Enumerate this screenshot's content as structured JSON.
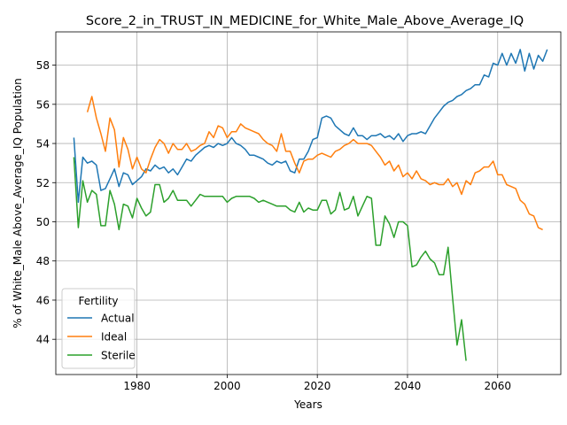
{
  "chart_data": {
    "type": "line",
    "title": "Score_2_in_TRUST_IN_MEDICINE_for_White_Male_Above_Average_IQ",
    "xlabel": "Years",
    "ylabel": "% of White_Male Above_Average_IQ Population",
    "xlim": [
      1962,
      2074
    ],
    "ylim": [
      42.2,
      59.7
    ],
    "xticks": [
      1980,
      2000,
      2020,
      2040,
      2060
    ],
    "yticks": [
      44,
      46,
      48,
      50,
      52,
      54,
      56,
      58
    ],
    "grid": true,
    "legend": {
      "title": "Fertility",
      "placement": "lower-left"
    },
    "series": [
      {
        "name": "Actual",
        "color": "#1f77b4",
        "points": [
          [
            1966,
            54.3
          ],
          [
            1967,
            51.0
          ],
          [
            1968,
            53.3
          ],
          [
            1969,
            53.0
          ],
          [
            1970,
            53.1
          ],
          [
            1971,
            52.9
          ],
          [
            1972,
            51.6
          ],
          [
            1973,
            51.7
          ],
          [
            1974,
            52.2
          ],
          [
            1975,
            52.7
          ],
          [
            1976,
            51.8
          ],
          [
            1977,
            52.5
          ],
          [
            1978,
            52.4
          ],
          [
            1979,
            51.9
          ],
          [
            1980,
            52.1
          ],
          [
            1981,
            52.3
          ],
          [
            1982,
            52.7
          ],
          [
            1983,
            52.6
          ],
          [
            1984,
            52.9
          ],
          [
            1985,
            52.7
          ],
          [
            1986,
            52.8
          ],
          [
            1987,
            52.5
          ],
          [
            1988,
            52.7
          ],
          [
            1989,
            52.4
          ],
          [
            1990,
            52.8
          ],
          [
            1991,
            53.2
          ],
          [
            1992,
            53.1
          ],
          [
            1993,
            53.4
          ],
          [
            1994,
            53.6
          ],
          [
            1995,
            53.8
          ],
          [
            1996,
            53.9
          ],
          [
            1997,
            53.8
          ],
          [
            1998,
            54.0
          ],
          [
            1999,
            53.9
          ],
          [
            2000,
            54.0
          ],
          [
            2001,
            54.3
          ],
          [
            2002,
            54.0
          ],
          [
            2003,
            53.9
          ],
          [
            2004,
            53.7
          ],
          [
            2005,
            53.4
          ],
          [
            2006,
            53.4
          ],
          [
            2007,
            53.3
          ],
          [
            2008,
            53.2
          ],
          [
            2009,
            53.0
          ],
          [
            2010,
            52.9
          ],
          [
            2011,
            53.1
          ],
          [
            2012,
            53.0
          ],
          [
            2013,
            53.1
          ],
          [
            2014,
            52.6
          ],
          [
            2015,
            52.5
          ],
          [
            2016,
            53.2
          ],
          [
            2017,
            53.2
          ],
          [
            2018,
            53.6
          ],
          [
            2019,
            54.2
          ],
          [
            2020,
            54.3
          ],
          [
            2021,
            55.3
          ],
          [
            2022,
            55.4
          ],
          [
            2023,
            55.3
          ],
          [
            2024,
            54.9
          ],
          [
            2025,
            54.7
          ],
          [
            2026,
            54.5
          ],
          [
            2027,
            54.4
          ],
          [
            2028,
            54.8
          ],
          [
            2029,
            54.4
          ],
          [
            2030,
            54.4
          ],
          [
            2031,
            54.2
          ],
          [
            2032,
            54.4
          ],
          [
            2033,
            54.4
          ],
          [
            2034,
            54.5
          ],
          [
            2035,
            54.3
          ],
          [
            2036,
            54.4
          ],
          [
            2037,
            54.2
          ],
          [
            2038,
            54.5
          ],
          [
            2039,
            54.1
          ],
          [
            2040,
            54.4
          ],
          [
            2041,
            54.5
          ],
          [
            2042,
            54.5
          ],
          [
            2043,
            54.6
          ],
          [
            2044,
            54.5
          ],
          [
            2045,
            54.9
          ],
          [
            2046,
            55.3
          ],
          [
            2047,
            55.6
          ],
          [
            2048,
            55.9
          ],
          [
            2049,
            56.1
          ],
          [
            2050,
            56.2
          ],
          [
            2051,
            56.4
          ],
          [
            2052,
            56.5
          ],
          [
            2053,
            56.7
          ],
          [
            2054,
            56.8
          ],
          [
            2055,
            57.0
          ],
          [
            2056,
            57.0
          ],
          [
            2057,
            57.5
          ],
          [
            2058,
            57.4
          ],
          [
            2059,
            58.1
          ],
          [
            2060,
            58.0
          ],
          [
            2061,
            58.6
          ],
          [
            2062,
            58.0
          ],
          [
            2063,
            58.6
          ],
          [
            2064,
            58.1
          ],
          [
            2065,
            58.8
          ],
          [
            2066,
            57.7
          ],
          [
            2067,
            58.6
          ],
          [
            2068,
            57.8
          ],
          [
            2069,
            58.5
          ],
          [
            2070,
            58.2
          ],
          [
            2071,
            58.8
          ]
        ]
      },
      {
        "name": "Ideal",
        "color": "#ff7f0e",
        "points": [
          [
            1969,
            55.6
          ],
          [
            1970,
            56.4
          ],
          [
            1971,
            55.3
          ],
          [
            1972,
            54.5
          ],
          [
            1973,
            53.6
          ],
          [
            1974,
            55.3
          ],
          [
            1975,
            54.7
          ],
          [
            1976,
            52.8
          ],
          [
            1977,
            54.3
          ],
          [
            1978,
            53.7
          ],
          [
            1979,
            52.7
          ],
          [
            1980,
            53.3
          ],
          [
            1981,
            52.7
          ],
          [
            1982,
            52.5
          ],
          [
            1983,
            53.2
          ],
          [
            1984,
            53.8
          ],
          [
            1985,
            54.2
          ],
          [
            1986,
            54.0
          ],
          [
            1987,
            53.5
          ],
          [
            1988,
            54.0
          ],
          [
            1989,
            53.7
          ],
          [
            1990,
            53.7
          ],
          [
            1991,
            54.0
          ],
          [
            1992,
            53.6
          ],
          [
            1993,
            53.7
          ],
          [
            1994,
            53.9
          ],
          [
            1995,
            54.0
          ],
          [
            1996,
            54.6
          ],
          [
            1997,
            54.3
          ],
          [
            1998,
            54.9
          ],
          [
            1999,
            54.8
          ],
          [
            2000,
            54.3
          ],
          [
            2001,
            54.6
          ],
          [
            2002,
            54.6
          ],
          [
            2003,
            55.0
          ],
          [
            2004,
            54.8
          ],
          [
            2005,
            54.7
          ],
          [
            2006,
            54.6
          ],
          [
            2007,
            54.5
          ],
          [
            2008,
            54.2
          ],
          [
            2009,
            54.0
          ],
          [
            2010,
            53.9
          ],
          [
            2011,
            53.6
          ],
          [
            2012,
            54.5
          ],
          [
            2013,
            53.6
          ],
          [
            2014,
            53.6
          ],
          [
            2015,
            53.0
          ],
          [
            2016,
            52.5
          ],
          [
            2017,
            53.1
          ],
          [
            2018,
            53.2
          ],
          [
            2019,
            53.2
          ],
          [
            2020,
            53.4
          ],
          [
            2021,
            53.5
          ],
          [
            2022,
            53.4
          ],
          [
            2023,
            53.3
          ],
          [
            2024,
            53.6
          ],
          [
            2025,
            53.7
          ],
          [
            2026,
            53.9
          ],
          [
            2027,
            54.0
          ],
          [
            2028,
            54.2
          ],
          [
            2029,
            54.0
          ],
          [
            2030,
            54.0
          ],
          [
            2031,
            54.0
          ],
          [
            2032,
            53.9
          ],
          [
            2033,
            53.6
          ],
          [
            2034,
            53.3
          ],
          [
            2035,
            52.9
          ],
          [
            2036,
            53.1
          ],
          [
            2037,
            52.6
          ],
          [
            2038,
            52.9
          ],
          [
            2039,
            52.3
          ],
          [
            2040,
            52.5
          ],
          [
            2041,
            52.2
          ],
          [
            2042,
            52.6
          ],
          [
            2043,
            52.2
          ],
          [
            2044,
            52.1
          ],
          [
            2045,
            51.9
          ],
          [
            2046,
            52.0
          ],
          [
            2047,
            51.9
          ],
          [
            2048,
            51.9
          ],
          [
            2049,
            52.2
          ],
          [
            2050,
            51.8
          ],
          [
            2051,
            52.0
          ],
          [
            2052,
            51.4
          ],
          [
            2053,
            52.1
          ],
          [
            2054,
            51.9
          ],
          [
            2055,
            52.5
          ],
          [
            2056,
            52.6
          ],
          [
            2057,
            52.8
          ],
          [
            2058,
            52.8
          ],
          [
            2059,
            53.1
          ],
          [
            2060,
            52.4
          ],
          [
            2061,
            52.4
          ],
          [
            2062,
            51.9
          ],
          [
            2063,
            51.8
          ],
          [
            2064,
            51.7
          ],
          [
            2065,
            51.1
          ],
          [
            2066,
            50.9
          ],
          [
            2067,
            50.4
          ],
          [
            2068,
            50.3
          ],
          [
            2069,
            49.7
          ],
          [
            2070,
            49.6
          ]
        ]
      },
      {
        "name": "Sterile",
        "color": "#2ca02c",
        "points": [
          [
            1966,
            53.3
          ],
          [
            1967,
            49.7
          ],
          [
            1968,
            52.1
          ],
          [
            1969,
            51.0
          ],
          [
            1970,
            51.6
          ],
          [
            1971,
            51.4
          ],
          [
            1972,
            49.8
          ],
          [
            1973,
            49.8
          ],
          [
            1974,
            51.6
          ],
          [
            1975,
            50.9
          ],
          [
            1976,
            49.6
          ],
          [
            1977,
            50.9
          ],
          [
            1978,
            50.8
          ],
          [
            1979,
            50.2
          ],
          [
            1980,
            51.2
          ],
          [
            1981,
            50.7
          ],
          [
            1982,
            50.3
          ],
          [
            1983,
            50.5
          ],
          [
            1984,
            51.9
          ],
          [
            1985,
            51.9
          ],
          [
            1986,
            51.0
          ],
          [
            1987,
            51.2
          ],
          [
            1988,
            51.6
          ],
          [
            1989,
            51.1
          ],
          [
            1990,
            51.1
          ],
          [
            1991,
            51.1
          ],
          [
            1992,
            50.8
          ],
          [
            1993,
            51.1
          ],
          [
            1994,
            51.4
          ],
          [
            1995,
            51.3
          ],
          [
            1996,
            51.3
          ],
          [
            1997,
            51.3
          ],
          [
            1998,
            51.3
          ],
          [
            1999,
            51.3
          ],
          [
            2000,
            51.0
          ],
          [
            2001,
            51.2
          ],
          [
            2002,
            51.3
          ],
          [
            2003,
            51.3
          ],
          [
            2004,
            51.3
          ],
          [
            2005,
            51.3
          ],
          [
            2006,
            51.2
          ],
          [
            2007,
            51.0
          ],
          [
            2008,
            51.1
          ],
          [
            2009,
            51.0
          ],
          [
            2010,
            50.9
          ],
          [
            2011,
            50.8
          ],
          [
            2012,
            50.8
          ],
          [
            2013,
            50.8
          ],
          [
            2014,
            50.6
          ],
          [
            2015,
            50.5
          ],
          [
            2016,
            51.0
          ],
          [
            2017,
            50.5
          ],
          [
            2018,
            50.7
          ],
          [
            2019,
            50.6
          ],
          [
            2020,
            50.6
          ],
          [
            2021,
            51.1
          ],
          [
            2022,
            51.1
          ],
          [
            2023,
            50.4
          ],
          [
            2024,
            50.6
          ],
          [
            2025,
            51.5
          ],
          [
            2026,
            50.6
          ],
          [
            2027,
            50.7
          ],
          [
            2028,
            51.3
          ],
          [
            2029,
            50.3
          ],
          [
            2030,
            50.8
          ],
          [
            2031,
            51.3
          ],
          [
            2032,
            51.2
          ],
          [
            2033,
            48.8
          ],
          [
            2034,
            48.8
          ],
          [
            2035,
            50.3
          ],
          [
            2036,
            49.9
          ],
          [
            2037,
            49.2
          ],
          [
            2038,
            50.0
          ],
          [
            2039,
            50.0
          ],
          [
            2040,
            49.8
          ],
          [
            2041,
            47.7
          ],
          [
            2042,
            47.8
          ],
          [
            2043,
            48.2
          ],
          [
            2044,
            48.5
          ],
          [
            2045,
            48.1
          ],
          [
            2046,
            47.9
          ],
          [
            2047,
            47.3
          ],
          [
            2048,
            47.3
          ],
          [
            2049,
            48.7
          ],
          [
            2050,
            46.1
          ],
          [
            2051,
            43.7
          ],
          [
            2052,
            45.0
          ],
          [
            2053,
            42.9
          ]
        ]
      }
    ]
  }
}
